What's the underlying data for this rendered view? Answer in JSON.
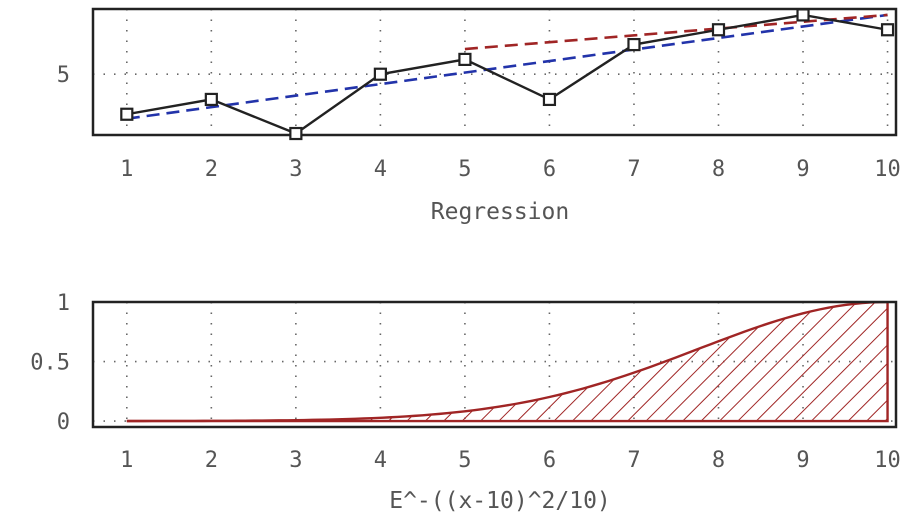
{
  "chart_data": [
    {
      "type": "line",
      "xlabel": "Regression",
      "ylabel": "",
      "title": "",
      "x_ticks": [
        "1",
        "2",
        "3",
        "4",
        "5",
        "6",
        "7",
        "8",
        "9",
        "10"
      ],
      "y_ticks": [
        "5"
      ],
      "xlim": [
        0.6,
        10.1
      ],
      "ylim": [
        0.9,
        9.4
      ],
      "grid": true,
      "series": [
        {
          "style": "solid black line with open square markers",
          "color": "#222222",
          "x": [
            1,
            2,
            3,
            4,
            5,
            6,
            7,
            8,
            9,
            10
          ],
          "y": [
            2.3,
            3.3,
            1.0,
            5.0,
            6.0,
            3.3,
            7.0,
            8.0,
            9.0,
            8.0
          ]
        },
        {
          "style": "dashed blue trend line",
          "color": "#2233aa",
          "x": [
            1,
            10
          ],
          "y": [
            2.0,
            9.0
          ]
        },
        {
          "style": "dashed dark red trend line",
          "color": "#a02525",
          "x": [
            5,
            10
          ],
          "y": [
            6.7,
            9.0
          ]
        }
      ]
    },
    {
      "type": "area",
      "xlabel": "E^-((x-10)^2/10)",
      "ylabel": "",
      "title": "",
      "x_ticks": [
        "1",
        "2",
        "3",
        "4",
        "5",
        "6",
        "7",
        "8",
        "9",
        "10"
      ],
      "y_ticks": [
        "1",
        "0.5",
        "0"
      ],
      "xlim": [
        0.6,
        10.1
      ],
      "ylim": [
        -0.05,
        1.0
      ],
      "grid": true,
      "fill": "diagonal hatch",
      "series": [
        {
          "color": "#a02525",
          "function": "exp(-((x-10)^2)/10)",
          "x": [
            1,
            2,
            3,
            4,
            5,
            6,
            7,
            8,
            9,
            10
          ],
          "y": [
            0.0003,
            0.0017,
            0.0074,
            0.0273,
            0.0821,
            0.2019,
            0.4066,
            0.6703,
            0.9048,
            1.0
          ]
        }
      ]
    }
  ]
}
